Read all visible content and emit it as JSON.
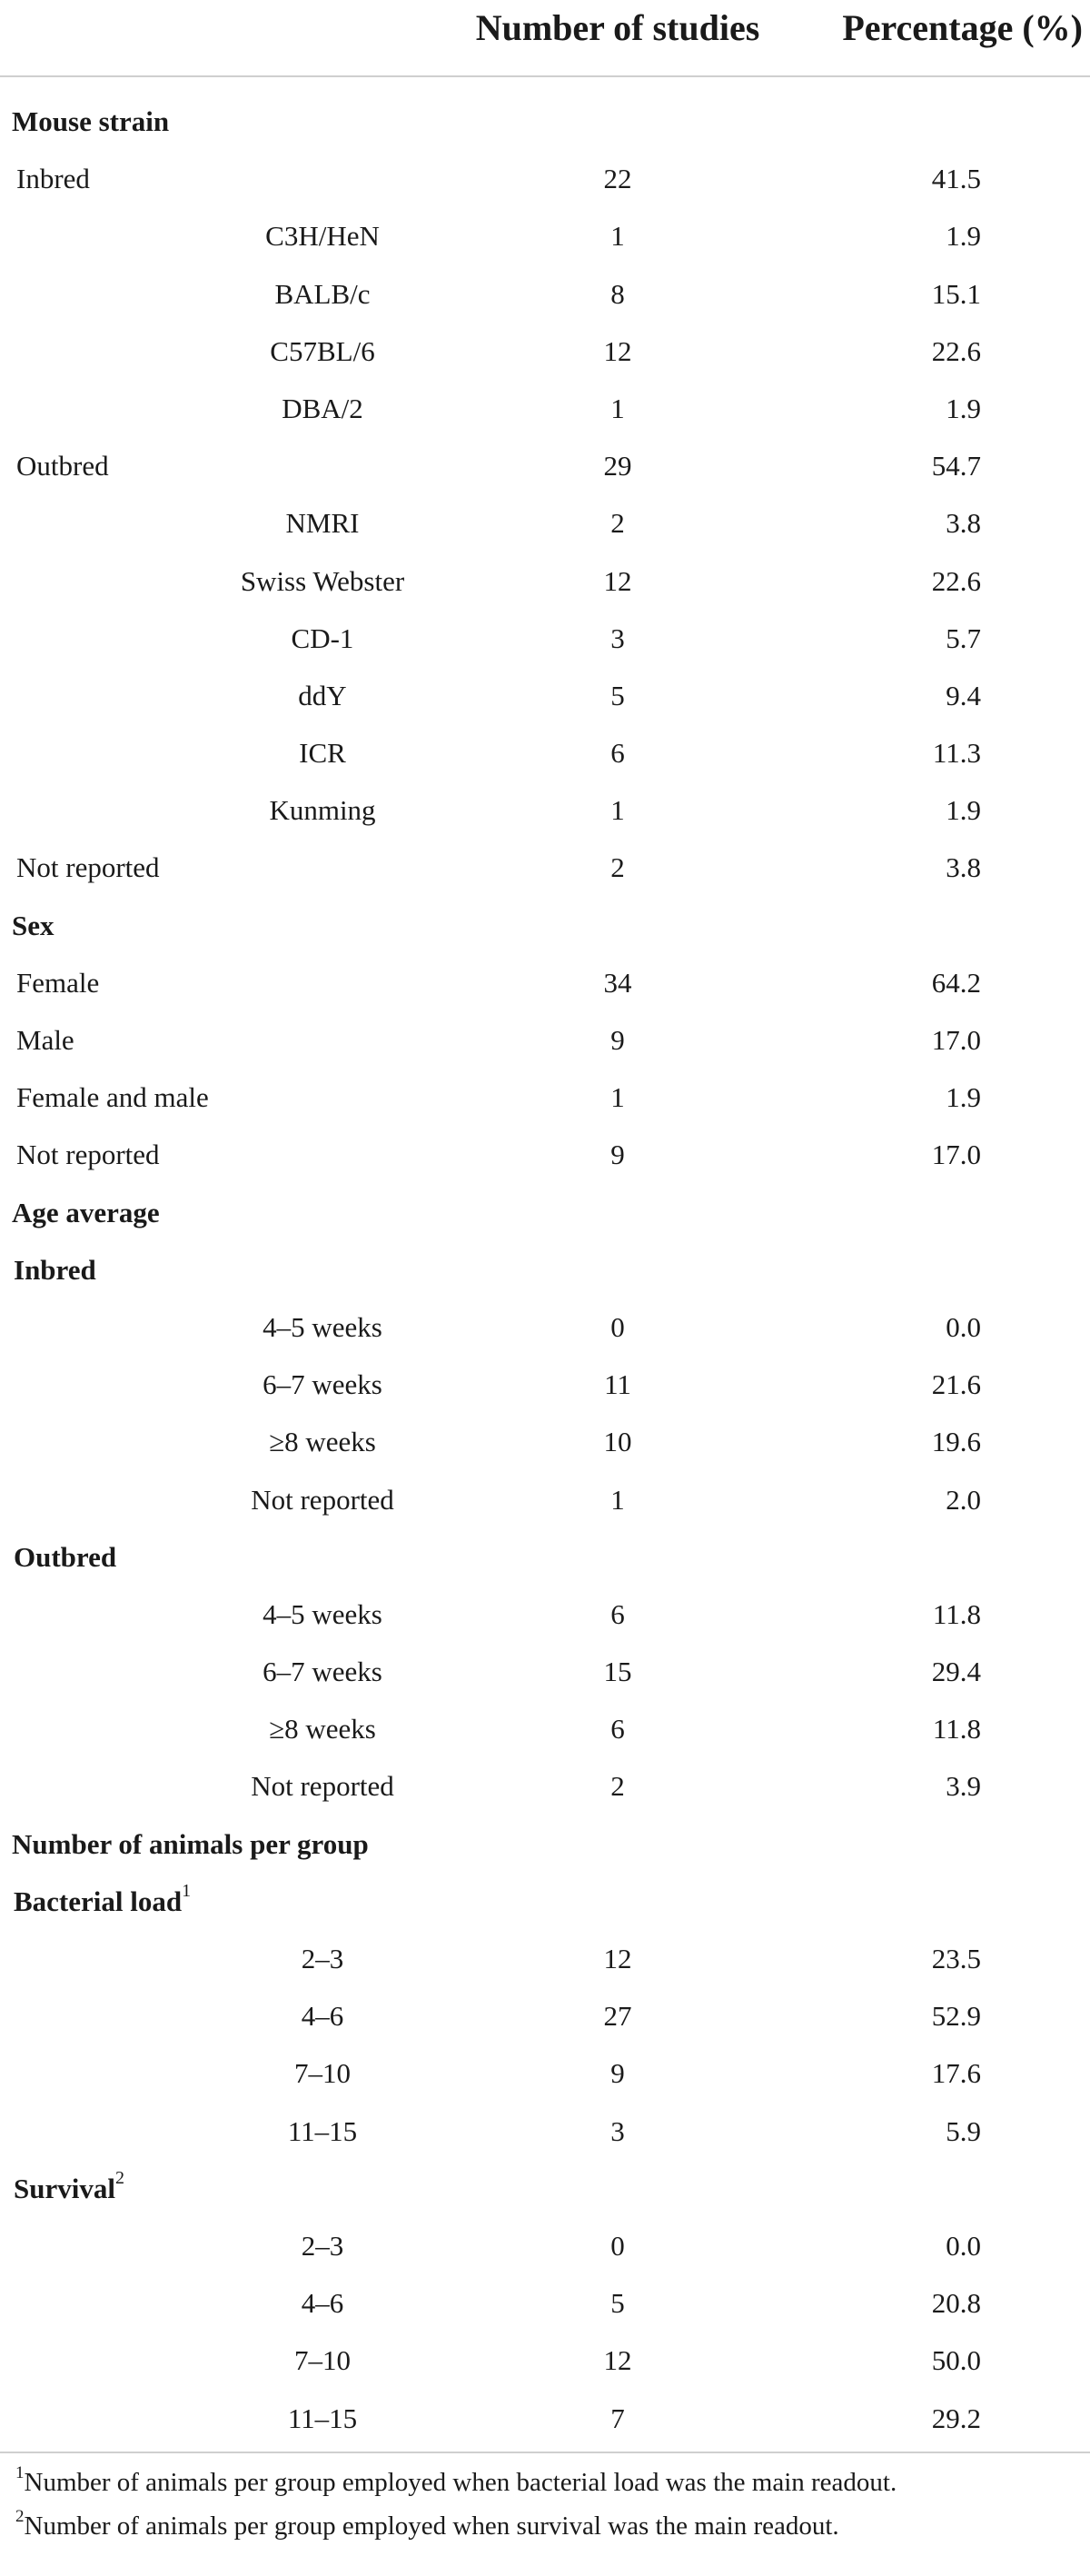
{
  "table": {
    "columns": [
      "Number of studies",
      "Percentage (%)"
    ],
    "rows": [
      {
        "type": "section",
        "label": "Mouse strain",
        "n": "",
        "pct": ""
      },
      {
        "type": "item",
        "label": "Inbred",
        "n": "22",
        "pct": "41.5"
      },
      {
        "type": "indent",
        "label": "C3H/HeN",
        "n": "1",
        "pct": "1.9"
      },
      {
        "type": "indent",
        "label": "BALB/c",
        "n": "8",
        "pct": "15.1"
      },
      {
        "type": "indent",
        "label": "C57BL/6",
        "n": "12",
        "pct": "22.6"
      },
      {
        "type": "indent",
        "label": "DBA/2",
        "n": "1",
        "pct": "1.9"
      },
      {
        "type": "item",
        "label": "Outbred",
        "n": "29",
        "pct": "54.7"
      },
      {
        "type": "indent",
        "label": "NMRI",
        "n": "2",
        "pct": "3.8"
      },
      {
        "type": "indent",
        "label": "Swiss Webster",
        "n": "12",
        "pct": "22.6"
      },
      {
        "type": "indent",
        "label": "CD-1",
        "n": "3",
        "pct": "5.7"
      },
      {
        "type": "indent",
        "label": "ddY",
        "n": "5",
        "pct": "9.4"
      },
      {
        "type": "indent",
        "label": "ICR",
        "n": "6",
        "pct": "11.3"
      },
      {
        "type": "indent",
        "label": "Kunming",
        "n": "1",
        "pct": "1.9"
      },
      {
        "type": "item",
        "label": "Not reported",
        "n": "2",
        "pct": "3.8"
      },
      {
        "type": "section",
        "label": "Sex",
        "n": "",
        "pct": ""
      },
      {
        "type": "item",
        "label": "Female",
        "n": "34",
        "pct": "64.2"
      },
      {
        "type": "item",
        "label": "Male",
        "n": "9",
        "pct": "17.0"
      },
      {
        "type": "item",
        "label": "Female and male",
        "n": "1",
        "pct": "1.9"
      },
      {
        "type": "item",
        "label": "Not reported",
        "n": "9",
        "pct": "17.0"
      },
      {
        "type": "section",
        "label": "Age average",
        "n": "",
        "pct": ""
      },
      {
        "type": "sub",
        "label": "Inbred",
        "n": "",
        "pct": ""
      },
      {
        "type": "indent",
        "label": "4–5 weeks",
        "n": "0",
        "pct": "0.0"
      },
      {
        "type": "indent",
        "label": "6–7 weeks",
        "n": "11",
        "pct": "21.6"
      },
      {
        "type": "indent",
        "label": "≥8 weeks",
        "n": "10",
        "pct": "19.6"
      },
      {
        "type": "indent",
        "label": "Not reported",
        "n": "1",
        "pct": "2.0"
      },
      {
        "type": "sub",
        "label": "Outbred",
        "n": "",
        "pct": ""
      },
      {
        "type": "indent",
        "label": "4–5 weeks",
        "n": "6",
        "pct": "11.8"
      },
      {
        "type": "indent",
        "label": "6–7 weeks",
        "n": "15",
        "pct": "29.4"
      },
      {
        "type": "indent",
        "label": "≥8 weeks",
        "n": "6",
        "pct": "11.8"
      },
      {
        "type": "indent",
        "label": "Not reported",
        "n": "2",
        "pct": "3.9"
      },
      {
        "type": "section",
        "label": "Number of animals per group",
        "n": "",
        "pct": ""
      },
      {
        "type": "sub",
        "label": "Bacterial load",
        "sup": "1",
        "n": "",
        "pct": ""
      },
      {
        "type": "indent",
        "label": "2–3",
        "n": "12",
        "pct": "23.5"
      },
      {
        "type": "indent",
        "label": "4–6",
        "n": "27",
        "pct": "52.9"
      },
      {
        "type": "indent",
        "label": "7–10",
        "n": "9",
        "pct": "17.6"
      },
      {
        "type": "indent",
        "label": "11–15",
        "n": "3",
        "pct": "5.9"
      },
      {
        "type": "sub",
        "label": "Survival",
        "sup": "2",
        "n": "",
        "pct": ""
      },
      {
        "type": "indent",
        "label": "2–3",
        "n": "0",
        "pct": "0.0"
      },
      {
        "type": "indent",
        "label": "4–6",
        "n": "5",
        "pct": "20.8"
      },
      {
        "type": "indent",
        "label": "7–10",
        "n": "12",
        "pct": "50.0"
      },
      {
        "type": "indent",
        "label": "11–15",
        "n": "7",
        "pct": "29.2"
      }
    ]
  },
  "footnotes": [
    {
      "mark": "1",
      "text": "Number of animals per group employed when bacterial load was the main readout."
    },
    {
      "mark": "2",
      "text": "Number of animals per group employed when survival was the main readout."
    }
  ],
  "colors": {
    "text": "#1a1a1a",
    "rule": "#cfcfcf",
    "background": "#ffffff"
  }
}
